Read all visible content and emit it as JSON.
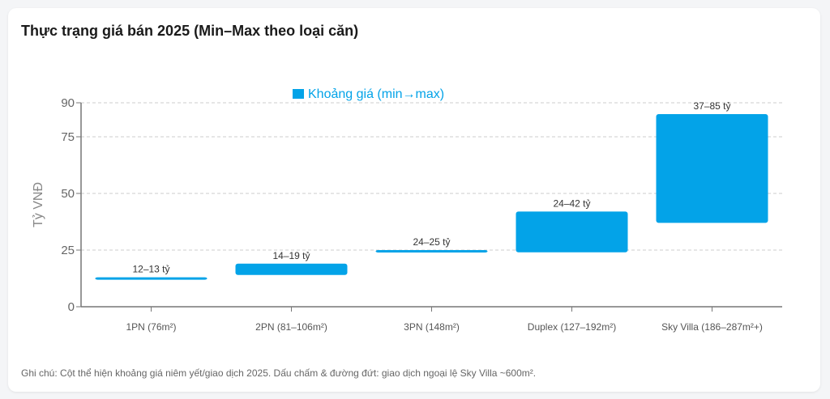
{
  "chart_data": {
    "type": "bar",
    "title": "Thực trạng giá bán 2025 (Min–Max theo loại căn)",
    "ylabel": "Tỷ VNĐ",
    "xlabel": "",
    "ylim": [
      0,
      90
    ],
    "yticks": [
      0,
      25,
      50,
      75,
      90
    ],
    "grid": true,
    "legend": {
      "label": "Khoảng giá (min→max)",
      "placement": "top-center"
    },
    "color": "#03a3e8",
    "categories": [
      "1PN (76m²)",
      "2PN (81–106m²)",
      "3PN (148m²)",
      "Duplex (127–192m²)",
      "Sky Villa (186–287m²+)"
    ],
    "series": [
      {
        "name": "Khoảng giá (min→max)",
        "min": [
          12,
          14,
          24,
          24,
          37
        ],
        "max": [
          13,
          19,
          25,
          42,
          85
        ],
        "labels": [
          "12–13 tỷ",
          "14–19 tỷ",
          "24–25 tỷ",
          "24–42 tỷ",
          "37–85 tỷ"
        ]
      }
    ]
  },
  "note": "Ghi chú: Cột thể hiện khoảng giá niêm yết/giao dịch 2025. Dấu chấm & đường đứt: giao dịch ngoại lệ Sky Villa ~600m²."
}
